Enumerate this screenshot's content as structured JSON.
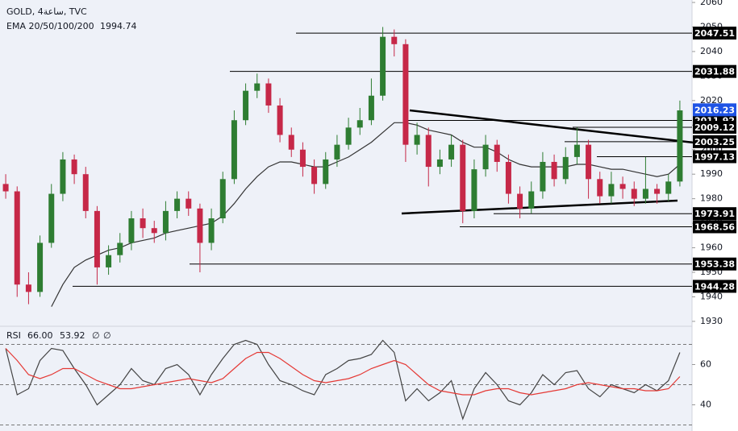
{
  "chart_data": [
    {
      "type": "candlestick",
      "title": "GOLD, 4ساعة, TVC",
      "subtitle": "EMA 20/50/100/200",
      "subtitle_value": "1994.74",
      "ylim": [
        1928,
        2061
      ],
      "yticks": [
        1930,
        1940,
        1950,
        1960,
        1970,
        1980,
        1990,
        2000,
        2010,
        2020,
        2030,
        2040,
        2050,
        2060
      ],
      "grid": false,
      "up_color": "#2e7d32",
      "down_color": "#c62848",
      "open": [
        1986,
        1983,
        1945,
        1942,
        1962,
        1982,
        1996,
        1990,
        1975,
        1952,
        1957,
        1962,
        1972,
        1968,
        1966,
        1975,
        1980,
        1976,
        1962,
        1972,
        1988,
        2012,
        2024,
        2027,
        2018,
        2006,
        2000,
        1993,
        1986,
        1996,
        2002,
        2009,
        2012,
        2022,
        2046,
        2043,
        2002,
        2006,
        1993,
        1996,
        2002,
        1975,
        1992,
        2002,
        1995,
        1982,
        1976,
        1983,
        1995,
        1988,
        1997,
        2002,
        1988,
        1981,
        1986,
        1984,
        1980,
        1984,
        1982,
        1987
      ],
      "high": [
        1990,
        1985,
        1950,
        1965,
        1986,
        1999,
        1998,
        1993,
        1977,
        1961,
        1966,
        1975,
        1976,
        1971,
        1979,
        1983,
        1983,
        1978,
        1976,
        1991,
        2016,
        2027,
        2031,
        2029,
        2021,
        2009,
        2003,
        1996,
        1999,
        2006,
        2013,
        2017,
        2029,
        2050,
        2049,
        2045,
        2011,
        2009,
        2000,
        2006,
        2004,
        1996,
        2006,
        2004,
        1998,
        1985,
        1987,
        1999,
        1998,
        2001,
        2009,
        2004,
        1991,
        1991,
        1989,
        1987,
        1997,
        1986,
        1990,
        2020
      ],
      "low": [
        1980,
        1940,
        1937,
        1940,
        1960,
        1979,
        1986,
        1972,
        1945,
        1949,
        1954,
        1959,
        1964,
        1962,
        1963,
        1972,
        1973,
        1950,
        1959,
        1970,
        1986,
        2010,
        2021,
        2015,
        2003,
        1997,
        1989,
        1982,
        1984,
        1993,
        2000,
        2006,
        2010,
        2020,
        2038,
        1995,
        1998,
        1985,
        1990,
        1993,
        1970,
        1972,
        1989,
        1991,
        1978,
        1972,
        1974,
        1980,
        1985,
        1986,
        1994,
        1980,
        1978,
        1978,
        1980,
        1977,
        1978,
        1978,
        1979,
        1985
      ],
      "close": [
        1983,
        1945,
        1942,
        1962,
        1982,
        1996,
        1990,
        1975,
        1952,
        1957,
        1962,
        1972,
        1968,
        1966,
        1975,
        1980,
        1976,
        1962,
        1972,
        1988,
        2012,
        2024,
        2027,
        2018,
        2006,
        2000,
        1993,
        1986,
        1996,
        2002,
        2009,
        2012,
        2022,
        2046,
        2043,
        2002,
        2006,
        1993,
        1996,
        2002,
        1975,
        1992,
        2002,
        1995,
        1982,
        1976,
        1983,
        1995,
        1988,
        1997,
        2002,
        1988,
        1981,
        1986,
        1984,
        1980,
        1984,
        1982,
        1987,
        2016
      ],
      "ema": {
        "color": "#333333",
        "values": [
          null,
          null,
          null,
          null,
          1936,
          1945,
          1952,
          1955,
          1957,
          1959,
          1960,
          1962,
          1963,
          1964,
          1966,
          1967,
          1968,
          1969,
          1970,
          1973,
          1978,
          1984,
          1989,
          1993,
          1995,
          1995,
          1994,
          1993,
          1993,
          1995,
          1997,
          2000,
          2003,
          2007,
          2011,
          2011,
          2010,
          2008,
          2007,
          2006,
          2003,
          2001,
          2001,
          1999,
          1996,
          1994,
          1993,
          1993,
          1993,
          1993,
          1994,
          1994,
          1993,
          1992,
          1992,
          1991,
          1990,
          1989,
          1990,
          1994
        ]
      },
      "levels": [
        2047.51,
        2031.88,
        2011.92,
        2009.12,
        2003.25,
        1997.13,
        1973.91,
        1968.56,
        1953.38,
        1944.28
      ],
      "level_color": "#000000",
      "last_price": 2016.23,
      "last_price_color": "#1e53e5"
    },
    {
      "type": "line",
      "header": [
        "RSI",
        "66.00",
        "53.92",
        "∅",
        "∅"
      ],
      "ylim": [
        27,
        79
      ],
      "yticks": [
        40,
        60
      ],
      "dashed_levels": [
        30,
        50,
        70
      ],
      "series": [
        {
          "name": "RSI",
          "color": "#444444",
          "values": [
            68,
            45,
            48,
            62,
            68,
            67,
            58,
            50,
            40,
            45,
            50,
            58,
            52,
            50,
            58,
            60,
            55,
            45,
            55,
            63,
            70,
            72,
            70,
            60,
            52,
            50,
            47,
            45,
            55,
            58,
            62,
            63,
            65,
            72,
            66,
            42,
            48,
            42,
            46,
            52,
            33,
            48,
            56,
            50,
            42,
            40,
            46,
            55,
            50,
            56,
            57,
            48,
            44,
            50,
            48,
            46,
            50,
            47,
            52,
            66
          ]
        },
        {
          "name": "MA",
          "color": "#e53935",
          "values": [
            68,
            62,
            55,
            53,
            55,
            58,
            58,
            55,
            52,
            50,
            48,
            48,
            49,
            50,
            51,
            52,
            53,
            52,
            51,
            53,
            58,
            63,
            66,
            66,
            63,
            59,
            55,
            52,
            51,
            52,
            53,
            55,
            58,
            60,
            62,
            60,
            55,
            50,
            47,
            46,
            45,
            45,
            47,
            48,
            48,
            46,
            45,
            46,
            47,
            48,
            50,
            51,
            50,
            49,
            48,
            48,
            47,
            47,
            48,
            54
          ]
        }
      ]
    }
  ]
}
